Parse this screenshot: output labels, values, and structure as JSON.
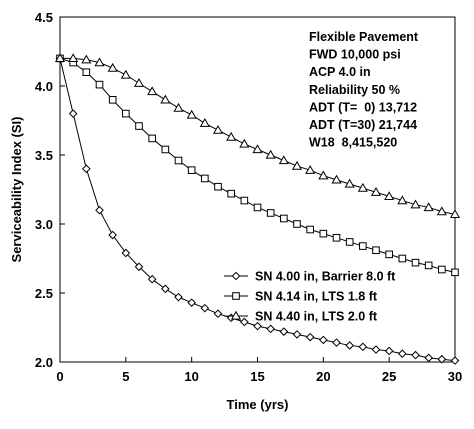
{
  "chart_data": {
    "type": "line",
    "title": "",
    "xlabel": "Time (yrs)",
    "ylabel": "Serviceability Index (SI)",
    "xlim": [
      0,
      30
    ],
    "ylim": [
      2.0,
      4.5
    ],
    "x_ticks": [
      0,
      5,
      10,
      15,
      20,
      25,
      30
    ],
    "y_ticks": [
      2.0,
      2.5,
      3.0,
      3.5,
      4.0,
      4.5
    ],
    "y_tick_labels": [
      "2.0",
      "2.5",
      "3.0",
      "3.5",
      "4.0",
      "4.5"
    ],
    "grid": false,
    "legend_position": "lower-right",
    "annotations": [
      "Flexible Pavement",
      "FWD 10,000 psi",
      "ACP 4.0 in",
      "Reliability 50 %",
      "ADT (T=  0) 13,712",
      "ADT (T=30) 21,744",
      "W18  8,415,520"
    ],
    "x": [
      0,
      1,
      2,
      3,
      4,
      5,
      6,
      7,
      8,
      9,
      10,
      11,
      12,
      13,
      14,
      15,
      16,
      17,
      18,
      19,
      20,
      21,
      22,
      23,
      24,
      25,
      26,
      27,
      28,
      29,
      30
    ],
    "series": [
      {
        "name": "SN 4.00 in, Barrier 8.0 ft",
        "marker": "diamond",
        "values": [
          4.2,
          3.8,
          3.4,
          3.1,
          2.92,
          2.79,
          2.69,
          2.6,
          2.53,
          2.47,
          2.43,
          2.39,
          2.35,
          2.32,
          2.29,
          2.26,
          2.24,
          2.22,
          2.2,
          2.18,
          2.16,
          2.14,
          2.12,
          2.11,
          2.09,
          2.08,
          2.06,
          2.05,
          2.03,
          2.02,
          2.01
        ]
      },
      {
        "name": "SN 4.14 in, LTS 1.8 ft",
        "marker": "square",
        "values": [
          4.2,
          4.17,
          4.1,
          4.01,
          3.9,
          3.8,
          3.71,
          3.62,
          3.54,
          3.46,
          3.39,
          3.33,
          3.27,
          3.22,
          3.17,
          3.12,
          3.08,
          3.04,
          3.0,
          2.96,
          2.93,
          2.9,
          2.87,
          2.84,
          2.81,
          2.78,
          2.75,
          2.72,
          2.7,
          2.67,
          2.65
        ]
      },
      {
        "name": "SN 4.40 in, LTS 2.0 ft",
        "marker": "triangle",
        "values": [
          4.2,
          4.2,
          4.19,
          4.17,
          4.13,
          4.08,
          4.02,
          3.96,
          3.9,
          3.84,
          3.79,
          3.73,
          3.68,
          3.63,
          3.58,
          3.54,
          3.5,
          3.46,
          3.42,
          3.39,
          3.35,
          3.32,
          3.29,
          3.26,
          3.23,
          3.2,
          3.17,
          3.14,
          3.12,
          3.09,
          3.07
        ]
      }
    ]
  }
}
